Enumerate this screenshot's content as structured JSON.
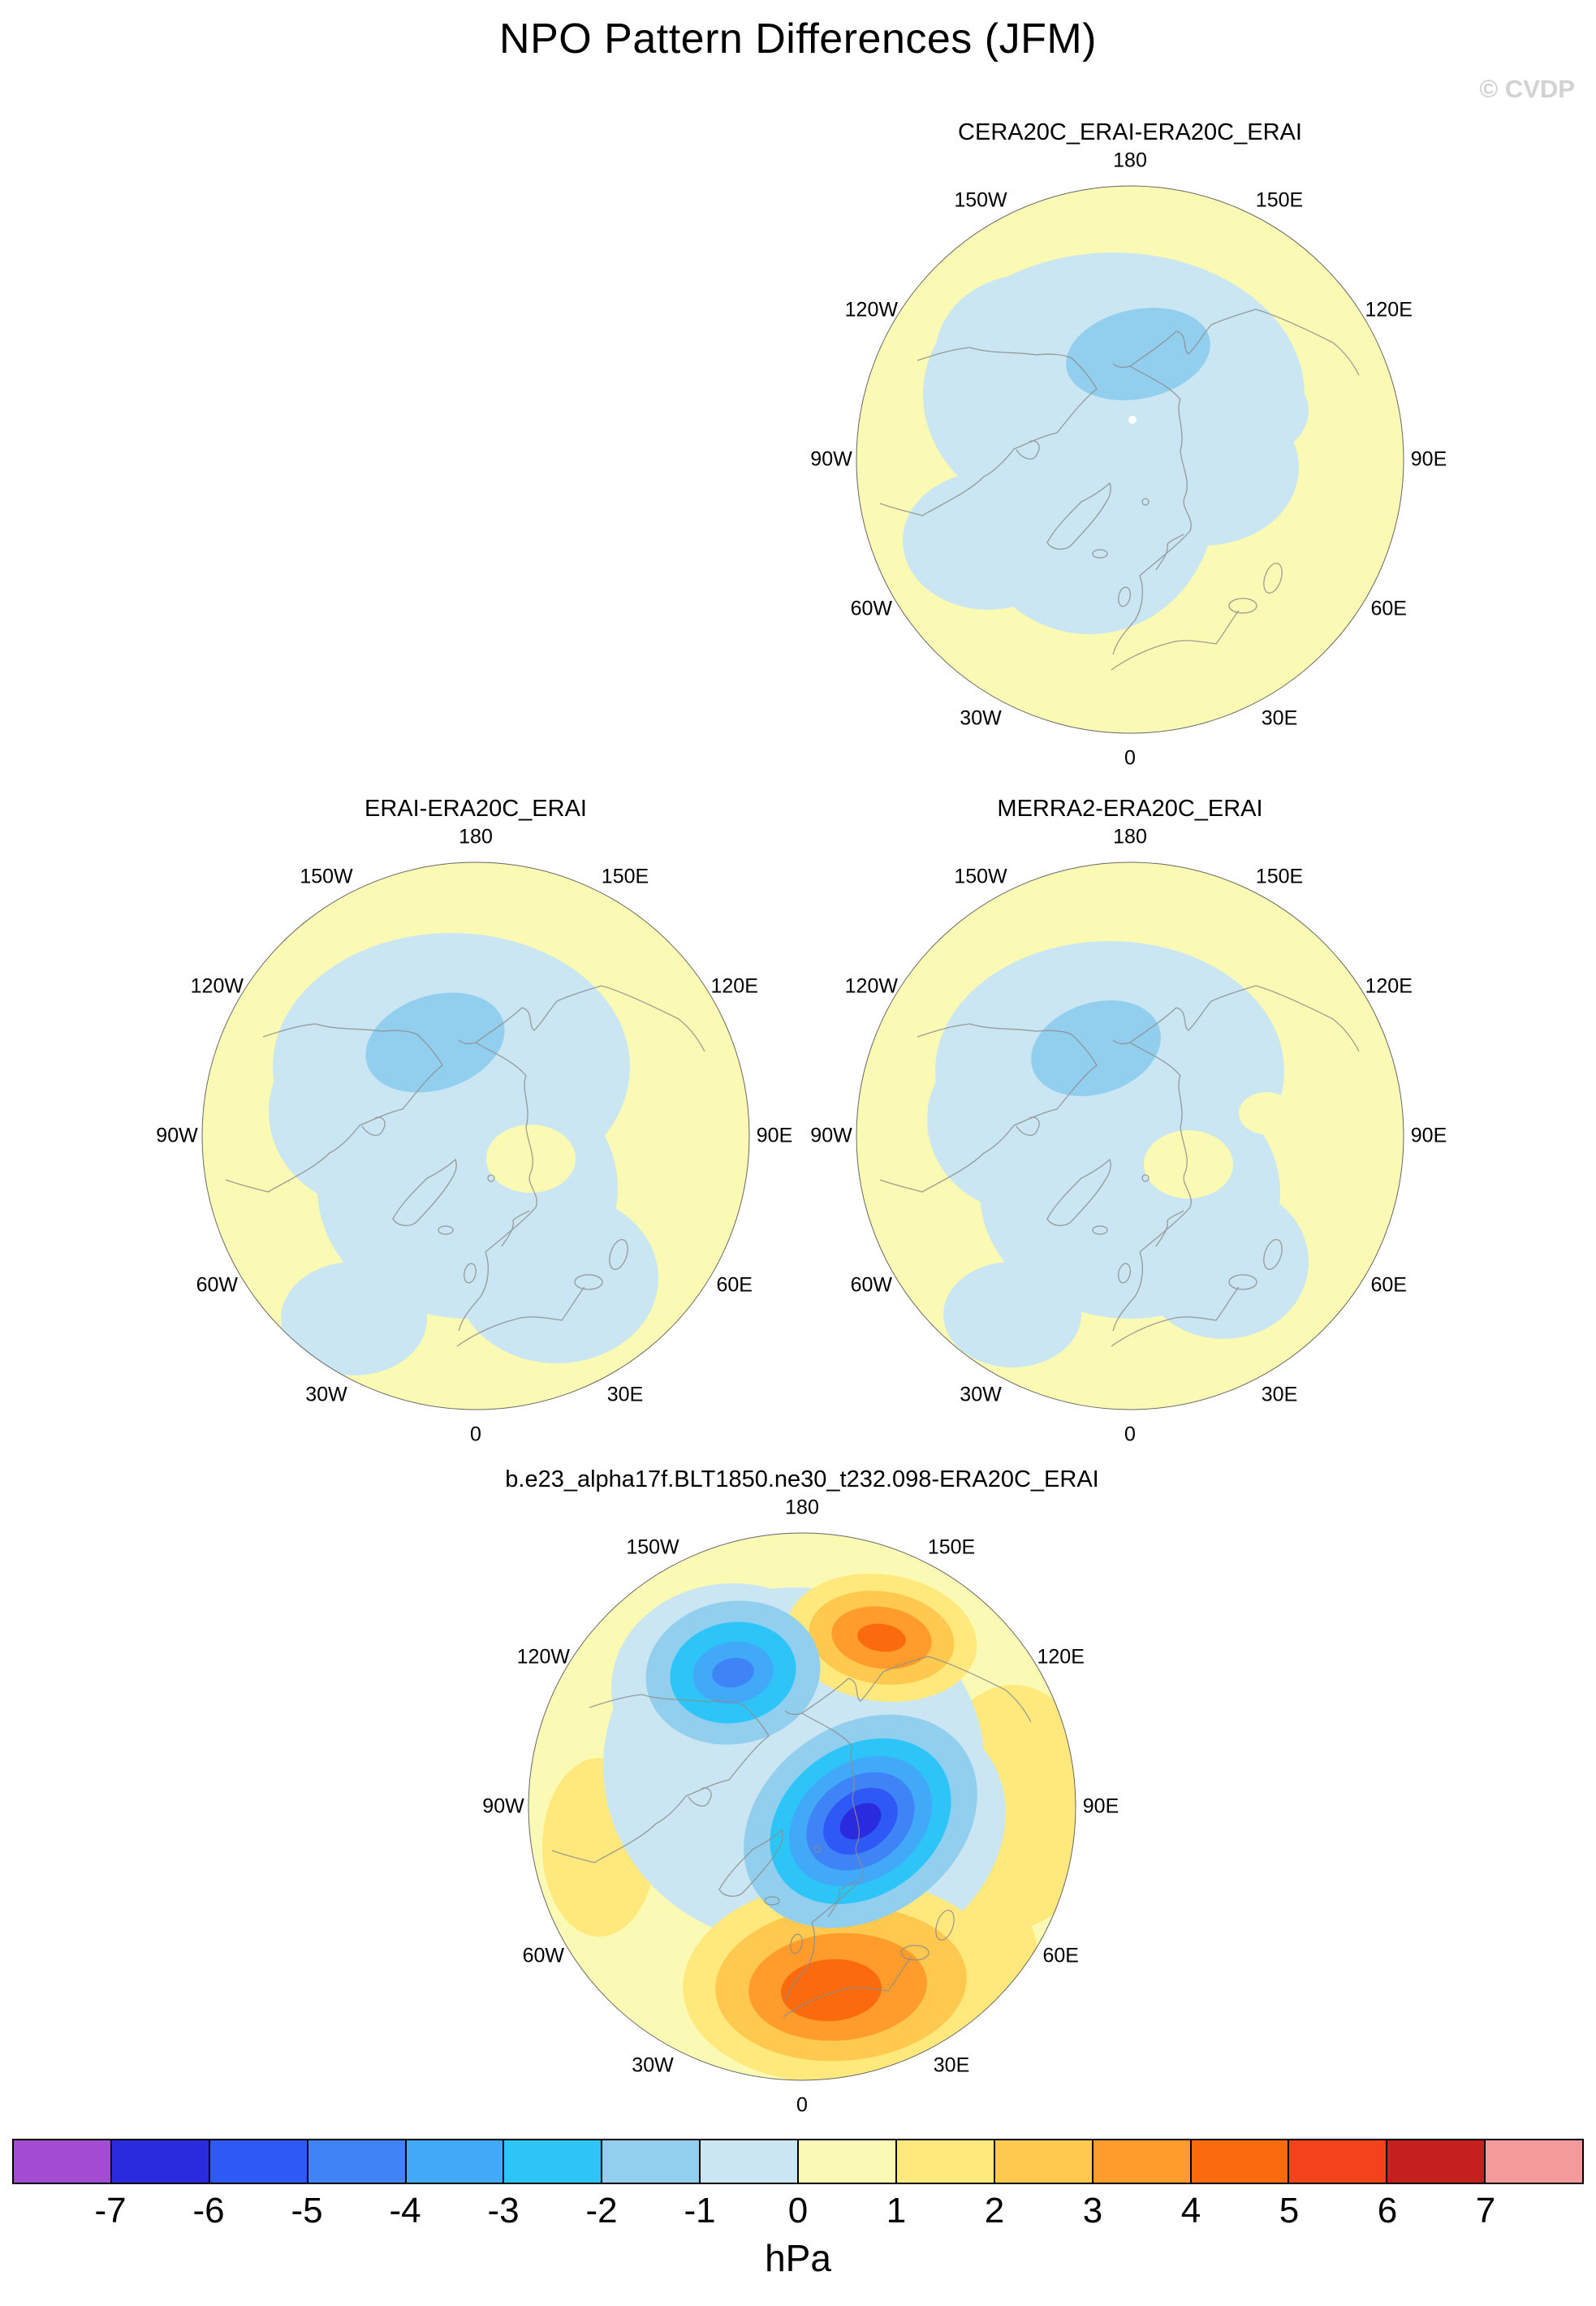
{
  "title": "NPO Pattern Differences (JFM)",
  "watermark": "© CVDP",
  "panels": [
    {
      "id": "cera20c",
      "title": "CERA20C_ERAI-ERA20C_ERAI"
    },
    {
      "id": "erai",
      "title": "ERAI-ERA20C_ERAI"
    },
    {
      "id": "merra2",
      "title": "MERRA2-ERA20C_ERAI"
    },
    {
      "id": "model",
      "title": "b.e23_alpha17f.BLT1850.ne30_t232.098-ERA20C_ERAI"
    }
  ],
  "map_ticks": [
    {
      "label": "180",
      "angle": 0
    },
    {
      "label": "150E",
      "angle": 30
    },
    {
      "label": "120E",
      "angle": 60
    },
    {
      "label": "90E",
      "angle": 90
    },
    {
      "label": "60E",
      "angle": 120
    },
    {
      "label": "30E",
      "angle": 150
    },
    {
      "label": "0",
      "angle": 180
    },
    {
      "label": "30W",
      "angle": 210
    },
    {
      "label": "60W",
      "angle": 240
    },
    {
      "label": "90W",
      "angle": 270
    },
    {
      "label": "120W",
      "angle": 300
    },
    {
      "label": "150W",
      "angle": 330
    }
  ],
  "colorbar": {
    "colors": [
      "#A34BD3",
      "#2A2BDE",
      "#2E59F7",
      "#3E84F7",
      "#41A9F8",
      "#2DC5F8",
      "#92CFEF",
      "#C9E6F2",
      "#FBFAB4",
      "#FFE97D",
      "#FFC84E",
      "#FF9C2B",
      "#FC6A0E",
      "#F2431B",
      "#C4201D",
      "#F59A9A"
    ],
    "tick_labels": [
      "-7",
      "-6",
      "-5",
      "-4",
      "-3",
      "-2",
      "-1",
      "0",
      "1",
      "2",
      "3",
      "4",
      "5",
      "6",
      "7"
    ],
    "unit": "hPa"
  },
  "chart_data": {
    "type": "heatmap",
    "subtype": "filled-contour north-polar-stereographic maps",
    "title": "NPO Pattern Differences (JFM)",
    "units": "hPa",
    "contour_levels": [
      -7,
      -6,
      -5,
      -4,
      -3,
      -2,
      -1,
      0,
      1,
      2,
      3,
      4,
      5,
      6,
      7
    ],
    "legend_position": "bottom",
    "longitude_labels": [
      "180",
      "150E",
      "120E",
      "90E",
      "60E",
      "30E",
      "0",
      "30W",
      "60W",
      "90W",
      "120W",
      "150W"
    ],
    "panels": [
      {
        "title": "CERA20C_ERAI-ERA20C_ERAI",
        "approx_value_range_hPa": [
          -2,
          1
        ],
        "pattern": "Weak negative anomalies (0 to -2 hPa) over the central Arctic, North America and North Atlantic; weak positive anomalies (0 to +1 hPa) around the outer ring over Asia and Europe; small -2 to -1 cell near the pole toward the Bering side; small white spot near the pole."
      },
      {
        "title": "ERAI-ERA20C_ERAI",
        "approx_value_range_hPa": [
          -2,
          1
        ],
        "pattern": "Weak negative anomalies (0 to -2 hPa) covering the Arctic and mid-high latitudes, extending to Europe; -2 to -1 cell north of Alaska; small positive (0 to +1) island right of the pole; positive background (0 to +1) elsewhere."
      },
      {
        "title": "MERRA2-ERA20C_ERAI",
        "approx_value_range_hPa": [
          -2,
          1
        ],
        "pattern": "Very similar to ERAI-ERA20C_ERAI: weak negative anomalies over the Arctic with a -2 to -1 cell north of Alaska, small positive islands east of the pole, positive 0 to +1 background around the edges."
      },
      {
        "title": "b.e23_alpha17f.BLT1850.ne30_t232.098-ERA20C_ERAI",
        "approx_value_range_hPa": [
          -7,
          5
        ],
        "pattern": "Strong negative center (down to -7 hPa) near the pole on the Atlantic/Barents side, secondary negative center (to -4 hPa) over the North Pacific/150W sector, positive center (to +4 hPa) over eastern Siberia near 180-150E, and a broad positive center (to +5 hPa) over Europe/North Atlantic; weak positive background elsewhere."
      }
    ]
  }
}
